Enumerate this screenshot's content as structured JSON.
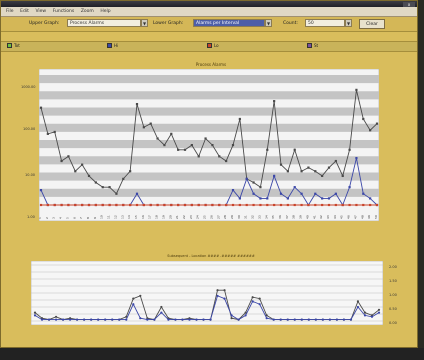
{
  "window": {
    "close_label": "x"
  },
  "menubar": {
    "items": [
      "File",
      "Edit",
      "View",
      "Functions",
      "Zoom",
      "Help"
    ]
  },
  "toolbar": {
    "upper_graph_label": "Upper Graph:",
    "upper_graph_value": "Process Alarms",
    "lower_graph_label": "Lower Graph:",
    "lower_graph_value": "Alarms per Interval",
    "count_label": "Count:",
    "count_value": "50",
    "clear_label": "Clear"
  },
  "legend": [
    {
      "label": "Tot",
      "color": "#6fbf3f"
    },
    {
      "label": "Hi",
      "color": "#3b47a8"
    },
    {
      "label": "Lo",
      "color": "#c8442b"
    },
    {
      "label": "St",
      "color": "#7a4fa0"
    }
  ],
  "upper_chart": {
    "subtitle": "Process Alarms",
    "y_ticks": [
      "1000.00",
      "100.00",
      "10.00",
      "1.00"
    ],
    "y_axis": "log"
  },
  "lower_chart": {
    "caption": "Subsequent - Location #### .##### ######",
    "y_ticks_right": [
      "2.00",
      "1.50",
      "1.00",
      "0.50",
      "0.00"
    ]
  },
  "chart_data": [
    {
      "type": "line",
      "y_scale": "log",
      "ylim": [
        1,
        3000
      ],
      "x": [
        1,
        2,
        3,
        4,
        5,
        6,
        7,
        8,
        9,
        10,
        11,
        12,
        13,
        14,
        15,
        16,
        17,
        18,
        19,
        20,
        21,
        22,
        23,
        24,
        25,
        26,
        27,
        28,
        29,
        30,
        31,
        32,
        33,
        34,
        35,
        36,
        37,
        38,
        39,
        40,
        41,
        42,
        43,
        44,
        45,
        46,
        47,
        48,
        49,
        50
      ],
      "series": [
        {
          "color": "#4a4a4a",
          "values": [
            400,
            80,
            90,
            15,
            20,
            8,
            12,
            6,
            4,
            3,
            3,
            2,
            5,
            8,
            500,
            120,
            150,
            60,
            40,
            80,
            30,
            30,
            40,
            20,
            60,
            40,
            20,
            15,
            40,
            200,
            5,
            4,
            3,
            30,
            600,
            12,
            8,
            30,
            8,
            10,
            8,
            6,
            10,
            15,
            6,
            30,
            1200,
            200,
            100,
            150
          ]
        },
        {
          "color": "#3b47a8",
          "values": [
            2.5,
            1,
            1,
            1,
            1,
            1,
            1,
            1,
            1,
            1,
            1,
            1,
            1,
            1,
            2,
            1,
            1,
            1,
            1,
            1,
            1,
            1,
            1,
            1,
            1,
            1,
            1,
            1,
            2.5,
            1.5,
            5,
            2,
            1.5,
            1.5,
            6,
            2,
            1.5,
            3,
            2,
            1,
            2,
            1.5,
            1.5,
            2,
            1,
            3,
            18,
            2,
            1.5,
            1
          ]
        },
        {
          "color": "#c8442b",
          "values": [
            1,
            1,
            1,
            1,
            1,
            1,
            1,
            1,
            1,
            1,
            1,
            1,
            1,
            1,
            1,
            1,
            1,
            1,
            1,
            1,
            1,
            1,
            1,
            1,
            1,
            1,
            1,
            1,
            1,
            1,
            1,
            1,
            1,
            1,
            1,
            1,
            1,
            1,
            1,
            1,
            1,
            1,
            1,
            1,
            1,
            1,
            1,
            1,
            1,
            1
          ]
        }
      ]
    },
    {
      "type": "line",
      "ylim": [
        0,
        2
      ],
      "x": [
        1,
        2,
        3,
        4,
        5,
        6,
        7,
        8,
        9,
        10,
        11,
        12,
        13,
        14,
        15,
        16,
        17,
        18,
        19,
        20,
        21,
        22,
        23,
        24,
        25,
        26,
        27,
        28,
        29,
        30,
        31,
        32,
        33,
        34,
        35,
        36,
        37,
        38,
        39,
        40,
        41,
        42,
        43,
        44,
        45,
        46,
        47,
        48,
        49,
        50
      ],
      "series": [
        {
          "color": "#4a4a4a",
          "values": [
            0.3,
            0.1,
            0.05,
            0.15,
            0.05,
            0.1,
            0.05,
            0.05,
            0.05,
            0.05,
            0.05,
            0.05,
            0.05,
            0.15,
            0.8,
            0.9,
            0.1,
            0.05,
            0.5,
            0.1,
            0.05,
            0.05,
            0.1,
            0.05,
            0.05,
            0.05,
            1.1,
            1.1,
            0.1,
            0.05,
            0.3,
            0.85,
            0.8,
            0.2,
            0.05,
            0.05,
            0.05,
            0.05,
            0.05,
            0.05,
            0.05,
            0.05,
            0.05,
            0.05,
            0.05,
            0.05,
            0.7,
            0.3,
            0.2,
            0.4
          ]
        },
        {
          "color": "#3b47a8",
          "values": [
            0.2,
            0.05,
            0.05,
            0.05,
            0.05,
            0.05,
            0.05,
            0.05,
            0.05,
            0.05,
            0.05,
            0.05,
            0.05,
            0.05,
            0.6,
            0.1,
            0.05,
            0.05,
            0.3,
            0.05,
            0.05,
            0.05,
            0.05,
            0.05,
            0.05,
            0.05,
            0.9,
            0.8,
            0.2,
            0.05,
            0.2,
            0.7,
            0.6,
            0.1,
            0.05,
            0.05,
            0.05,
            0.05,
            0.05,
            0.05,
            0.05,
            0.05,
            0.05,
            0.05,
            0.05,
            0.05,
            0.5,
            0.2,
            0.15,
            0.3
          ]
        }
      ]
    }
  ]
}
